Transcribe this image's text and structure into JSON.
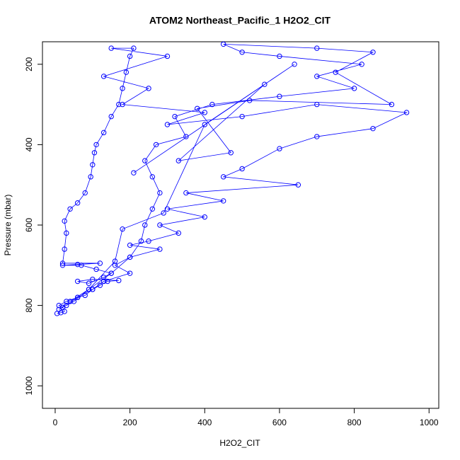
{
  "chart_data": {
    "type": "scatter",
    "title": "ATOM2 Northeast_Pacific_1 H2O2_CIT",
    "x_label": "H2O2_CIT",
    "y_label": "Pressure (mbar)",
    "xlim": [
      -34,
      1026
    ],
    "ylim": [
      144,
      1056
    ],
    "y_reversed": true,
    "xticks": [
      0,
      200,
      400,
      600,
      800,
      1000
    ],
    "yticks": [
      200,
      400,
      600,
      800,
      1000
    ],
    "connect_points": true,
    "series": [
      {
        "color": "#0000ff",
        "x": [
          5,
          15,
          25,
          20,
          10,
          30,
          60,
          80,
          100,
          120,
          140,
          170,
          100,
          60,
          90,
          130,
          150,
          110,
          70,
          20,
          60,
          120,
          20,
          25,
          30,
          25,
          40,
          60,
          80,
          95,
          100,
          105,
          110,
          130,
          150,
          170,
          180,
          190,
          200,
          210,
          150,
          300,
          130,
          250,
          180,
          400,
          300,
          500,
          700,
          940,
          850,
          700,
          600,
          500,
          450,
          650,
          350,
          450,
          300,
          400,
          280,
          330,
          250,
          200,
          280,
          200,
          160,
          200,
          130,
          100,
          60,
          30,
          10,
          40,
          90,
          150,
          200,
          230,
          240,
          260,
          280,
          260,
          240,
          270,
          350,
          320,
          420,
          600,
          800,
          700,
          820,
          600,
          500,
          450,
          700,
          850,
          750,
          900,
          520,
          380,
          470,
          330,
          560,
          210,
          640,
          400,
          290,
          180,
          160,
          90,
          50,
          20
        ],
        "values": [
          820,
          818,
          815,
          805,
          800,
          790,
          780,
          775,
          760,
          750,
          740,
          738,
          735,
          740,
          745,
          730,
          720,
          710,
          700,
          700,
          698,
          695,
          695,
          660,
          620,
          590,
          560,
          545,
          520,
          480,
          450,
          420,
          400,
          370,
          330,
          300,
          260,
          220,
          180,
          160,
          160,
          180,
          230,
          260,
          300,
          320,
          350,
          330,
          300,
          320,
          360,
          380,
          410,
          460,
          480,
          500,
          520,
          540,
          560,
          580,
          600,
          620,
          640,
          650,
          660,
          680,
          700,
          720,
          740,
          760,
          780,
          800,
          810,
          790,
          760,
          720,
          680,
          640,
          600,
          560,
          520,
          480,
          440,
          400,
          380,
          330,
          300,
          280,
          260,
          230,
          200,
          180,
          170,
          150,
          160,
          170,
          220,
          300,
          290,
          310,
          420,
          440,
          250,
          470,
          200,
          350,
          570,
          610,
          690,
          760,
          790,
          805
        ]
      }
    ]
  }
}
